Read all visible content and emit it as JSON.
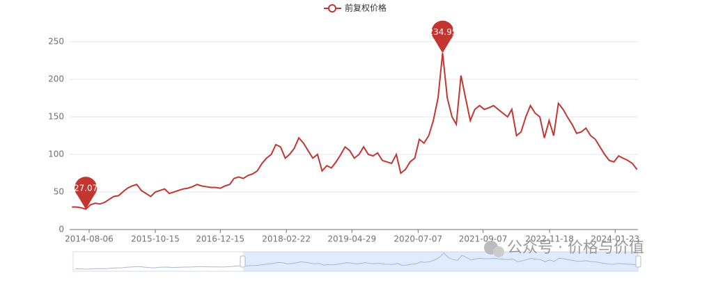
{
  "chart_data": {
    "type": "line",
    "series": [
      {
        "name": "前复权价格",
        "color": "#c23531",
        "x": [
          "2014-04-15",
          "2014-05-15",
          "2014-06-15",
          "2014-07-15",
          "2014-08-15",
          "2014-09-15",
          "2014-10-15",
          "2014-11-15",
          "2014-12-15",
          "2015-01-15",
          "2015-02-15",
          "2015-03-15",
          "2015-04-15",
          "2015-05-15",
          "2015-06-15",
          "2015-07-15",
          "2015-08-15",
          "2015-09-15",
          "2015-10-15",
          "2015-11-15",
          "2015-12-15",
          "2016-01-15",
          "2016-02-15",
          "2016-03-15",
          "2016-04-15",
          "2016-05-15",
          "2016-06-15",
          "2016-07-15",
          "2016-08-15",
          "2016-09-15",
          "2016-10-15",
          "2016-11-15",
          "2016-12-15",
          "2017-01-15",
          "2017-02-15",
          "2017-03-15",
          "2017-04-15",
          "2017-05-15",
          "2017-06-15",
          "2017-07-15",
          "2017-08-15",
          "2017-09-15",
          "2017-10-15",
          "2017-11-15",
          "2017-12-15",
          "2018-01-15",
          "2018-02-15",
          "2018-03-15",
          "2018-04-15",
          "2018-05-15",
          "2018-06-15",
          "2018-07-15",
          "2018-08-15",
          "2018-09-15",
          "2018-10-15",
          "2018-11-15",
          "2018-12-15",
          "2019-01-15",
          "2019-02-15",
          "2019-03-15",
          "2019-04-15",
          "2019-05-15",
          "2019-06-15",
          "2019-07-15",
          "2019-08-15",
          "2019-09-15",
          "2019-10-15",
          "2019-11-15",
          "2019-12-15",
          "2020-01-15",
          "2020-02-15",
          "2020-03-15",
          "2020-04-15",
          "2020-05-15",
          "2020-06-15",
          "2020-07-15",
          "2020-08-15",
          "2020-09-15",
          "2020-10-15",
          "2020-11-15",
          "2020-12-15",
          "2021-01-15",
          "2021-02-15",
          "2021-03-15",
          "2021-04-15",
          "2021-05-15",
          "2021-06-15",
          "2021-07-15",
          "2021-08-15",
          "2021-09-15",
          "2021-10-15",
          "2021-11-15",
          "2021-12-15",
          "2022-01-15",
          "2022-02-15",
          "2022-03-15",
          "2022-04-15",
          "2022-05-15",
          "2022-06-15",
          "2022-07-15",
          "2022-08-15",
          "2022-09-15",
          "2022-10-15",
          "2022-11-15",
          "2022-12-15",
          "2023-01-15",
          "2023-02-15",
          "2023-03-15",
          "2023-04-15",
          "2023-05-15",
          "2023-06-15",
          "2023-07-15",
          "2023-08-15",
          "2023-09-15",
          "2023-10-15",
          "2023-11-15",
          "2023-12-15",
          "2024-01-15",
          "2024-02-15",
          "2024-03-15",
          "2024-04-15",
          "2024-05-15",
          "2024-06-15"
        ],
        "values": [
          30,
          30,
          29,
          27.07,
          33,
          35,
          34,
          36,
          40,
          44,
          45,
          50,
          55,
          58,
          60,
          52,
          48,
          44,
          50,
          52,
          54,
          48,
          50,
          52,
          54,
          55,
          57,
          60,
          58,
          57,
          56,
          56,
          55,
          58,
          60,
          68,
          70,
          68,
          72,
          74,
          78,
          88,
          95,
          100,
          113,
          110,
          95,
          100,
          108,
          122,
          115,
          105,
          95,
          100,
          78,
          85,
          82,
          90,
          100,
          110,
          105,
          95,
          100,
          110,
          100,
          98,
          102,
          92,
          90,
          88,
          100,
          75,
          80,
          90,
          95,
          120,
          115,
          125,
          145,
          175,
          234.95,
          175,
          150,
          140,
          205,
          175,
          145,
          160,
          165,
          160,
          162,
          165,
          160,
          155,
          150,
          160,
          125,
          130,
          150,
          165,
          155,
          150,
          122,
          145,
          125,
          168,
          160,
          150,
          140,
          128,
          130,
          135,
          125,
          120,
          110,
          100,
          92,
          90,
          98,
          95,
          92,
          88,
          80
        ]
      }
    ],
    "xlim": [
      "2014-03-31",
      "2024-06-21"
    ],
    "xticks": [
      "2014-08-06",
      "2015-10-15",
      "2016-12-15",
      "2018-02-22",
      "2019-04-29",
      "2020-07-07",
      "2021-09-07",
      "2022-11-18",
      "2024-01-23"
    ],
    "ylim": [
      0,
      250
    ],
    "yticks": [
      0,
      50,
      100,
      150,
      200,
      250
    ],
    "grid": true,
    "mark_points": [
      "max",
      "min"
    ],
    "watermark": "公众号 · 价格与价值"
  }
}
